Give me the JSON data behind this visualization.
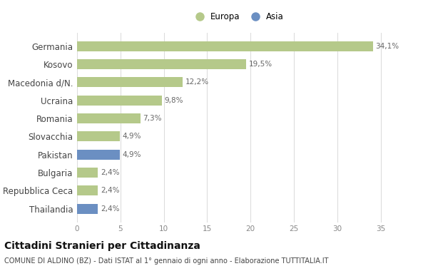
{
  "categories": [
    "Germania",
    "Kosovo",
    "Macedonia d/N.",
    "Ucraina",
    "Romania",
    "Slovacchia",
    "Pakistan",
    "Bulgaria",
    "Repubblica Ceca",
    "Thailandia"
  ],
  "values": [
    34.1,
    19.5,
    12.2,
    9.8,
    7.3,
    4.9,
    4.9,
    2.4,
    2.4,
    2.4
  ],
  "labels": [
    "34,1%",
    "19,5%",
    "12,2%",
    "9,8%",
    "7,3%",
    "4,9%",
    "4,9%",
    "2,4%",
    "2,4%",
    "2,4%"
  ],
  "colors": [
    "#b5c98a",
    "#b5c98a",
    "#b5c98a",
    "#b5c98a",
    "#b5c98a",
    "#b5c98a",
    "#6b8fc2",
    "#b5c98a",
    "#b5c98a",
    "#6b8fc2"
  ],
  "europa_color": "#b5c98a",
  "asia_color": "#6b8fc2",
  "xlim": [
    0,
    37
  ],
  "xticks": [
    0,
    5,
    10,
    15,
    20,
    25,
    30,
    35
  ],
  "title": "Cittadini Stranieri per Cittadinanza",
  "subtitle": "COMUNE DI ALDINO (BZ) - Dati ISTAT al 1° gennaio di ogni anno - Elaborazione TUTTITALIA.IT",
  "background_color": "#ffffff",
  "grid_color": "#dddddd",
  "bar_height": 0.55
}
